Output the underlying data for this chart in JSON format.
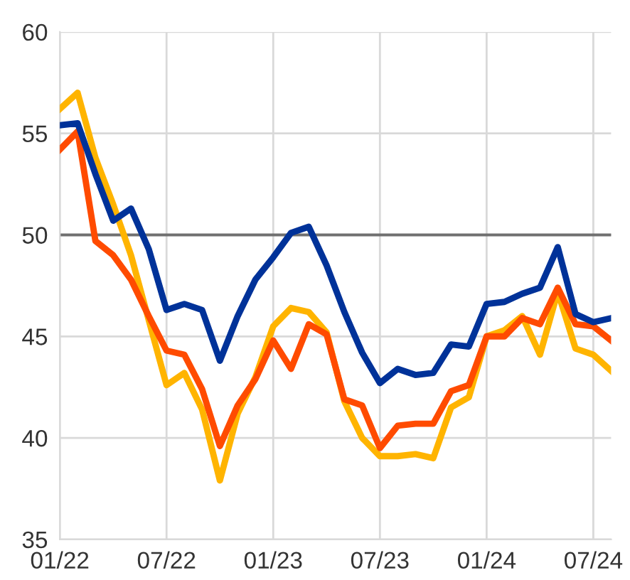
{
  "chart_data": {
    "type": "line",
    "x": [
      "2022-01",
      "2022-02",
      "2022-03",
      "2022-04",
      "2022-05",
      "2022-06",
      "2022-07",
      "2022-08",
      "2022-09",
      "2022-10",
      "2022-11",
      "2022-12",
      "2023-01",
      "2023-02",
      "2023-03",
      "2023-04",
      "2023-05",
      "2023-06",
      "2023-07",
      "2023-08",
      "2023-09",
      "2023-10",
      "2023-11",
      "2023-12",
      "2024-01",
      "2024-02",
      "2024-03",
      "2024-04",
      "2024-05",
      "2024-06",
      "2024-07",
      "2024-08"
    ],
    "series": [
      {
        "color": "#ffb400",
        "values": [
          56.2,
          57.0,
          53.8,
          51.5,
          49.0,
          45.8,
          42.6,
          43.2,
          41.4,
          37.9,
          41.2,
          43.0,
          45.5,
          46.4,
          46.2,
          45.2,
          41.8,
          40.0,
          39.1,
          39.1,
          39.2,
          39.0,
          41.5,
          42.0,
          45.0,
          45.3,
          46.0,
          44.1,
          47.2,
          44.4,
          44.1,
          43.3
        ]
      },
      {
        "color": "#ff4b00",
        "values": [
          54.2,
          55.1,
          49.7,
          49.0,
          47.8,
          46.0,
          44.3,
          44.1,
          42.4,
          39.6,
          41.6,
          42.9,
          44.8,
          43.4,
          45.6,
          45.1,
          41.9,
          41.6,
          39.5,
          40.6,
          40.7,
          40.7,
          42.3,
          42.6,
          45.0,
          45.0,
          45.9,
          45.6,
          47.4,
          45.6,
          45.5,
          44.8
        ]
      },
      {
        "color": "#003299",
        "values": [
          55.4,
          55.5,
          53.0,
          50.7,
          51.3,
          49.3,
          46.3,
          46.6,
          46.3,
          43.8,
          46.0,
          47.8,
          48.9,
          50.1,
          50.4,
          48.5,
          46.2,
          44.2,
          42.7,
          43.4,
          43.1,
          43.2,
          44.6,
          44.5,
          46.6,
          46.7,
          47.1,
          47.4,
          49.4,
          46.1,
          45.7,
          45.9
        ]
      }
    ],
    "xlim": [
      "2022-01",
      "2024-08"
    ],
    "xticks": [
      {
        "value": "2022-01",
        "label": "01/22"
      },
      {
        "value": "2022-07",
        "label": "07/22"
      },
      {
        "value": "2023-01",
        "label": "01/23"
      },
      {
        "value": "2023-07",
        "label": "07/23"
      },
      {
        "value": "2024-01",
        "label": "01/24"
      },
      {
        "value": "2024-07",
        "label": "07/24"
      }
    ],
    "ylim": [
      35,
      60
    ],
    "yticks": [
      35,
      40,
      45,
      50,
      55,
      60
    ],
    "ref_lines": [
      {
        "axis": "y",
        "value": 50,
        "color": "#707070"
      }
    ],
    "grid": true
  }
}
